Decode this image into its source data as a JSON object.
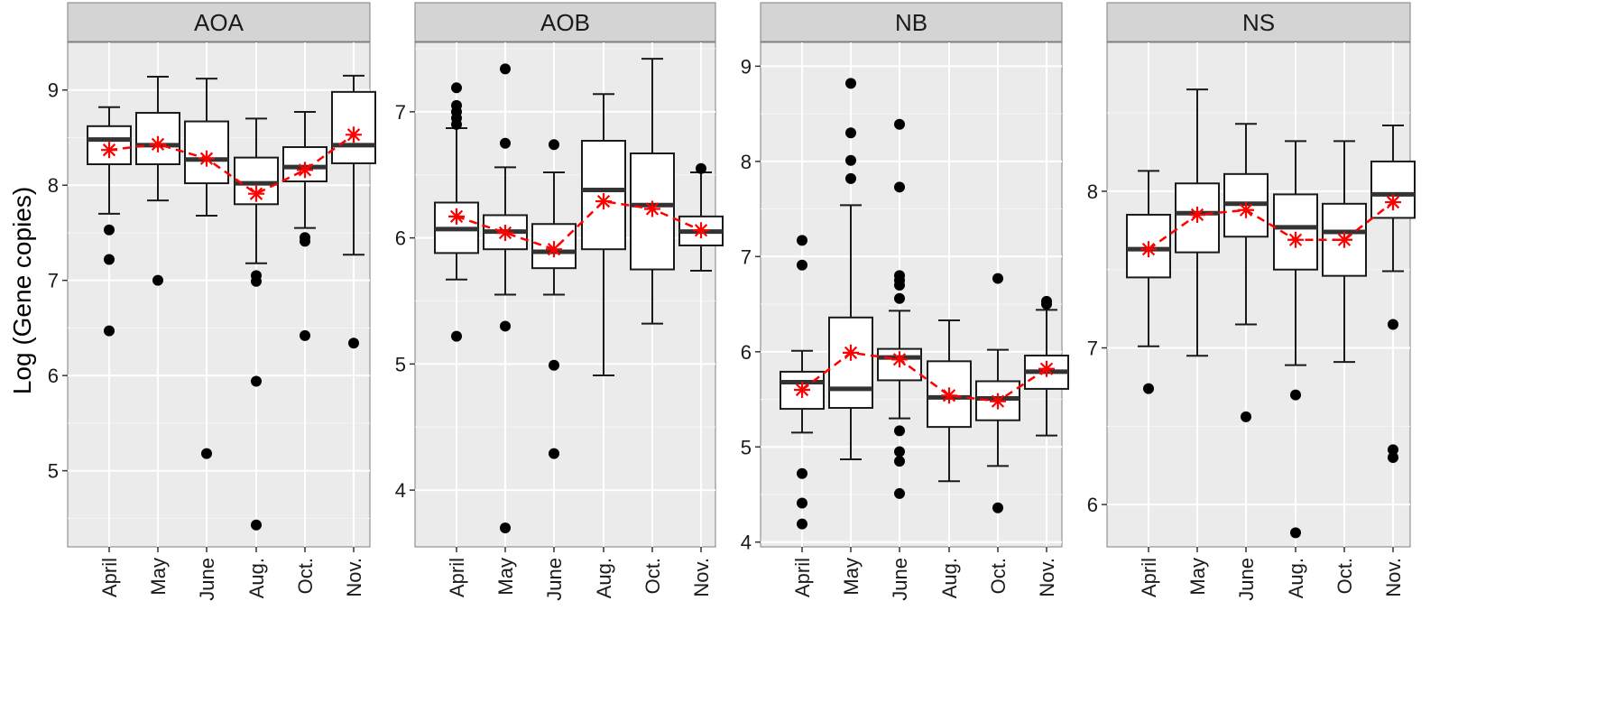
{
  "chart_data": {
    "type": "box",
    "layout": "faceted",
    "ylabel": "Log (Gene copies)",
    "categories": [
      "April",
      "May",
      "June",
      "Aug.",
      "Oct.",
      "Nov."
    ],
    "colors": {
      "panel_background": "#ebebeb",
      "grid": "#ffffff",
      "strip_background": "#d4d4d4",
      "strip_border": "#7f7f7f",
      "box": "#1a1a1a",
      "mean": "#ff0000"
    },
    "facets": [
      {
        "name": "AOA",
        "ylim": [
          4.2,
          9.5
        ],
        "yticks": [
          5,
          6,
          7,
          8,
          9
        ],
        "boxes": [
          {
            "lower_whisker": 7.7,
            "q1": 8.22,
            "median": 8.48,
            "q3": 8.62,
            "upper_whisker": 8.82,
            "mean": 8.37,
            "outliers": [
              7.53,
              7.22,
              6.47
            ]
          },
          {
            "lower_whisker": 7.84,
            "q1": 8.22,
            "median": 8.42,
            "q3": 8.76,
            "upper_whisker": 9.14,
            "mean": 8.43,
            "outliers": [
              7.0
            ]
          },
          {
            "lower_whisker": 7.68,
            "q1": 8.02,
            "median": 8.27,
            "q3": 8.67,
            "upper_whisker": 9.12,
            "mean": 8.28,
            "outliers": [
              5.18
            ]
          },
          {
            "lower_whisker": 7.18,
            "q1": 7.8,
            "median": 8.02,
            "q3": 8.29,
            "upper_whisker": 8.7,
            "mean": 7.91,
            "outliers": [
              7.05,
              6.99,
              5.94,
              4.43
            ]
          },
          {
            "lower_whisker": 7.55,
            "q1": 8.04,
            "median": 8.19,
            "q3": 8.4,
            "upper_whisker": 8.77,
            "mean": 8.16,
            "outliers": [
              7.45,
              7.41,
              6.42
            ]
          },
          {
            "lower_whisker": 7.27,
            "q1": 8.23,
            "median": 8.42,
            "q3": 8.98,
            "upper_whisker": 9.15,
            "mean": 8.53,
            "outliers": [
              6.34
            ]
          }
        ]
      },
      {
        "name": "AOB",
        "ylim": [
          3.55,
          7.55
        ],
        "yticks": [
          4,
          5,
          6,
          7
        ],
        "boxes": [
          {
            "lower_whisker": 5.67,
            "q1": 5.88,
            "median": 6.07,
            "q3": 6.28,
            "upper_whisker": 6.87,
            "mean": 6.17,
            "outliers": [
              7.19,
              7.05,
              7.0,
              6.95,
              6.9,
              5.22
            ]
          },
          {
            "lower_whisker": 5.55,
            "q1": 5.91,
            "median": 6.05,
            "q3": 6.18,
            "upper_whisker": 6.56,
            "mean": 6.04,
            "outliers": [
              7.34,
              6.75,
              5.3,
              3.7
            ]
          },
          {
            "lower_whisker": 5.55,
            "q1": 5.76,
            "median": 5.89,
            "q3": 6.11,
            "upper_whisker": 6.52,
            "mean": 5.91,
            "outliers": [
              6.74,
              4.99,
              4.29
            ]
          },
          {
            "lower_whisker": 4.91,
            "q1": 5.91,
            "median": 6.38,
            "q3": 6.77,
            "upper_whisker": 7.14,
            "mean": 6.29,
            "outliers": []
          },
          {
            "lower_whisker": 5.32,
            "q1": 5.75,
            "median": 6.26,
            "q3": 6.67,
            "upper_whisker": 7.42,
            "mean": 6.23,
            "outliers": []
          },
          {
            "lower_whisker": 5.74,
            "q1": 5.94,
            "median": 6.05,
            "q3": 6.17,
            "upper_whisker": 6.52,
            "mean": 6.06,
            "outliers": [
              6.55
            ]
          }
        ]
      },
      {
        "name": "NB",
        "ylim": [
          3.95,
          9.25
        ],
        "yticks": [
          4,
          5,
          6,
          7,
          8,
          9
        ],
        "boxes": [
          {
            "lower_whisker": 5.15,
            "q1": 5.4,
            "median": 5.68,
            "q3": 5.79,
            "upper_whisker": 6.01,
            "mean": 5.6,
            "outliers": [
              7.17,
              6.91,
              4.72,
              4.41,
              4.19
            ]
          },
          {
            "lower_whisker": 4.87,
            "q1": 5.41,
            "median": 5.61,
            "q3": 6.36,
            "upper_whisker": 7.54,
            "mean": 5.99,
            "outliers": [
              8.82,
              8.3,
              8.01,
              7.82
            ]
          },
          {
            "lower_whisker": 5.3,
            "q1": 5.7,
            "median": 5.94,
            "q3": 6.03,
            "upper_whisker": 6.43,
            "mean": 5.92,
            "outliers": [
              8.39,
              7.73,
              6.8,
              6.75,
              6.7,
              6.56,
              5.17,
              4.95,
              4.85,
              4.51
            ]
          },
          {
            "lower_whisker": 4.64,
            "q1": 5.21,
            "median": 5.52,
            "q3": 5.9,
            "upper_whisker": 6.33,
            "mean": 5.54,
            "outliers": []
          },
          {
            "lower_whisker": 4.8,
            "q1": 5.28,
            "median": 5.51,
            "q3": 5.69,
            "upper_whisker": 6.02,
            "mean": 5.48,
            "outliers": [
              6.77,
              4.36
            ]
          },
          {
            "lower_whisker": 5.12,
            "q1": 5.61,
            "median": 5.79,
            "q3": 5.96,
            "upper_whisker": 6.44,
            "mean": 5.82,
            "outliers": [
              6.53,
              6.5
            ]
          }
        ]
      },
      {
        "name": "NS",
        "ylim": [
          5.73,
          8.95
        ],
        "yticks": [
          6,
          7,
          8
        ],
        "boxes": [
          {
            "lower_whisker": 7.01,
            "q1": 7.45,
            "median": 7.63,
            "q3": 7.85,
            "upper_whisker": 8.13,
            "mean": 7.63,
            "outliers": [
              6.74
            ]
          },
          {
            "lower_whisker": 6.95,
            "q1": 7.61,
            "median": 7.86,
            "q3": 8.05,
            "upper_whisker": 8.65,
            "mean": 7.85,
            "outliers": []
          },
          {
            "lower_whisker": 7.15,
            "q1": 7.71,
            "median": 7.92,
            "q3": 8.11,
            "upper_whisker": 8.43,
            "mean": 7.88,
            "outliers": [
              6.56
            ]
          },
          {
            "lower_whisker": 6.89,
            "q1": 7.5,
            "median": 7.77,
            "q3": 7.98,
            "upper_whisker": 8.32,
            "mean": 7.69,
            "outliers": [
              6.7,
              5.82
            ]
          },
          {
            "lower_whisker": 6.91,
            "q1": 7.46,
            "median": 7.74,
            "q3": 7.92,
            "upper_whisker": 8.32,
            "mean": 7.69,
            "outliers": []
          },
          {
            "lower_whisker": 7.49,
            "q1": 7.83,
            "median": 7.98,
            "q3": 8.19,
            "upper_whisker": 8.42,
            "mean": 7.93,
            "outliers": [
              7.15,
              6.35,
              6.3
            ]
          }
        ]
      }
    ]
  }
}
